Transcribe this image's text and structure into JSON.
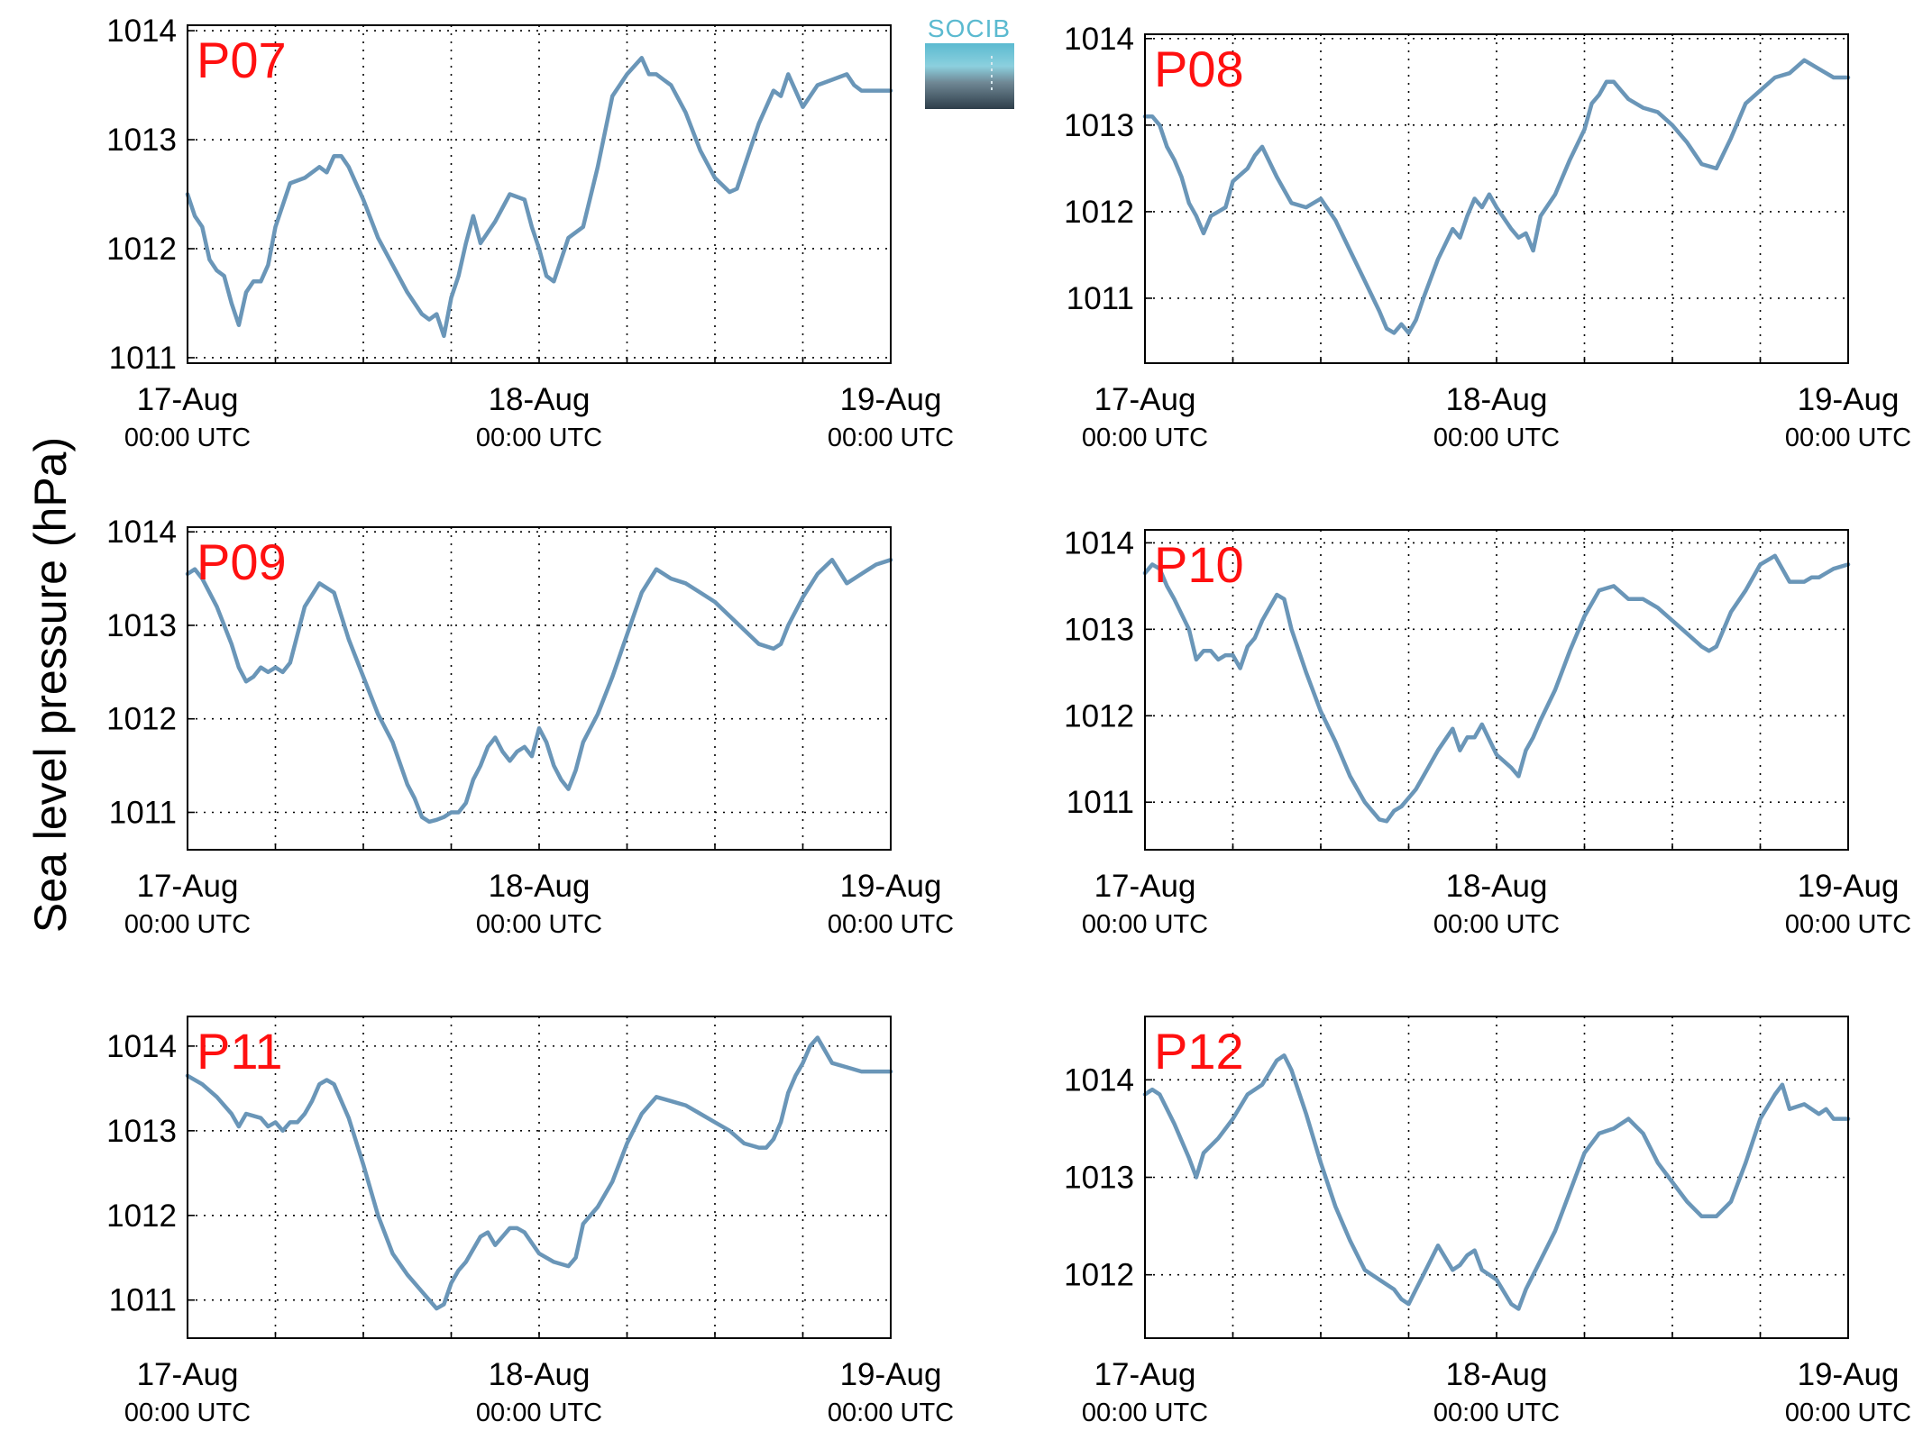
{
  "ylabel": "Sea level pressure (hPa)",
  "logo": {
    "text": "SOCIB"
  },
  "colors": {
    "line": "#6a96b8",
    "panel_label": "#ff1010",
    "logo_accent": "#5bbad0"
  },
  "chart_data": [
    {
      "type": "line",
      "title": "P07",
      "x_ticks": [
        {
          "date": "17-Aug",
          "time": "00:00 UTC"
        },
        {
          "date": "18-Aug",
          "time": "00:00 UTC"
        },
        {
          "date": "19-Aug",
          "time": "00:00 UTC"
        }
      ],
      "xlim_hours": [
        0,
        48
      ],
      "ylim": [
        1010.95,
        1014.05
      ],
      "yticks": [
        1011,
        1012,
        1013,
        1014
      ],
      "grid": true,
      "series": [
        {
          "x": [
            0,
            0.5,
            1,
            1.5,
            2,
            2.5,
            3,
            3.5,
            4,
            4.5,
            5,
            5.5,
            6,
            7,
            8,
            9,
            9.5,
            10,
            10.5,
            11,
            12,
            13,
            14,
            15,
            16,
            16.5,
            17,
            17.5,
            18,
            18.5,
            19,
            19.5,
            20,
            21,
            22,
            23,
            23.5,
            24,
            24.5,
            25,
            26,
            27,
            28,
            29,
            30,
            31,
            31.5,
            32,
            32.5,
            33,
            34,
            35,
            36,
            37,
            37.5,
            38,
            39,
            40,
            40.5,
            41,
            42,
            43,
            44,
            45,
            45.5,
            46,
            46.5,
            47,
            47.5,
            48
          ],
          "y": [
            1012.5,
            1012.3,
            1012.2,
            1011.9,
            1011.8,
            1011.75,
            1011.5,
            1011.3,
            1011.6,
            1011.7,
            1011.7,
            1011.85,
            1012.2,
            1012.6,
            1012.65,
            1012.75,
            1012.7,
            1012.85,
            1012.85,
            1012.75,
            1012.45,
            1012.1,
            1011.85,
            1011.6,
            1011.4,
            1011.35,
            1011.4,
            1011.2,
            1011.55,
            1011.75,
            1012.05,
            1012.3,
            1012.05,
            1012.25,
            1012.5,
            1012.45,
            1012.2,
            1012.0,
            1011.75,
            1011.7,
            1012.1,
            1012.2,
            1012.75,
            1013.4,
            1013.6,
            1013.75,
            1013.6,
            1013.6,
            1013.55,
            1013.5,
            1013.25,
            1012.9,
            1012.65,
            1012.52,
            1012.55,
            1012.75,
            1013.15,
            1013.45,
            1013.4,
            1013.6,
            1013.3,
            1013.5,
            1013.55,
            1013.6,
            1013.5,
            1013.45,
            1013.45,
            1013.45,
            1013.45,
            1013.45
          ]
        }
      ]
    },
    {
      "type": "line",
      "title": "P08",
      "x_ticks": [
        {
          "date": "17-Aug",
          "time": "00:00 UTC"
        },
        {
          "date": "18-Aug",
          "time": "00:00 UTC"
        },
        {
          "date": "19-Aug",
          "time": "00:00 UTC"
        }
      ],
      "xlim_hours": [
        0,
        48
      ],
      "ylim": [
        1010.25,
        1014.05
      ],
      "yticks": [
        1011,
        1012,
        1013,
        1014
      ],
      "grid": true,
      "series": [
        {
          "x": [
            0,
            0.5,
            1,
            1.5,
            2,
            2.5,
            3,
            3.5,
            4,
            4.5,
            5,
            5.5,
            6,
            7,
            7.5,
            8,
            9,
            10,
            11,
            12,
            13,
            14,
            15,
            16,
            16.5,
            17,
            17.5,
            18,
            18.5,
            19,
            20,
            21,
            21.5,
            22,
            22.5,
            23,
            23.5,
            24,
            25,
            25.5,
            26,
            26.5,
            27,
            28,
            29,
            30,
            30.5,
            31,
            31.5,
            32,
            32.5,
            33,
            34,
            35,
            36,
            37,
            38,
            39,
            40,
            41,
            42,
            43,
            44,
            45,
            46,
            46.5,
            47,
            48
          ],
          "y": [
            1013.1,
            1013.1,
            1013.0,
            1012.75,
            1012.6,
            1012.4,
            1012.1,
            1011.95,
            1011.75,
            1011.95,
            1012.0,
            1012.05,
            1012.35,
            1012.5,
            1012.65,
            1012.75,
            1012.4,
            1012.1,
            1012.05,
            1012.15,
            1011.9,
            1011.55,
            1011.2,
            1010.85,
            1010.65,
            1010.6,
            1010.7,
            1010.6,
            1010.75,
            1011.0,
            1011.45,
            1011.8,
            1011.7,
            1011.95,
            1012.15,
            1012.05,
            1012.2,
            1012.05,
            1011.8,
            1011.7,
            1011.75,
            1011.55,
            1011.95,
            1012.2,
            1012.6,
            1012.95,
            1013.25,
            1013.35,
            1013.5,
            1013.5,
            1013.4,
            1013.3,
            1013.2,
            1013.15,
            1013.0,
            1012.8,
            1012.55,
            1012.5,
            1012.85,
            1013.25,
            1013.4,
            1013.55,
            1013.6,
            1013.75,
            1013.65,
            1013.6,
            1013.55,
            1013.55
          ]
        }
      ]
    },
    {
      "type": "line",
      "title": "P09",
      "x_ticks": [
        {
          "date": "17-Aug",
          "time": "00:00 UTC"
        },
        {
          "date": "18-Aug",
          "time": "00:00 UTC"
        },
        {
          "date": "19-Aug",
          "time": "00:00 UTC"
        }
      ],
      "xlim_hours": [
        0,
        48
      ],
      "ylim": [
        1010.6,
        1014.05
      ],
      "yticks": [
        1011,
        1012,
        1013,
        1014
      ],
      "grid": true,
      "series": [
        {
          "x": [
            0,
            0.5,
            1,
            2,
            3,
            3.5,
            4,
            4.5,
            5,
            5.5,
            6,
            6.5,
            7,
            7.5,
            8,
            9,
            10,
            11,
            12,
            13,
            14,
            15,
            15.5,
            16,
            16.5,
            17,
            17.5,
            18,
            18.5,
            19,
            19.5,
            20,
            20.5,
            21,
            21.5,
            22,
            22.5,
            23,
            23.5,
            24,
            24.5,
            25,
            25.5,
            26,
            26.5,
            27,
            28,
            29,
            30,
            31,
            32,
            33,
            34,
            35,
            36,
            37,
            38,
            39,
            40,
            40.5,
            41,
            42,
            43,
            44,
            45,
            45.5,
            46,
            46.5,
            47,
            48
          ],
          "y": [
            1013.55,
            1013.6,
            1013.5,
            1013.2,
            1012.8,
            1012.55,
            1012.4,
            1012.45,
            1012.55,
            1012.5,
            1012.55,
            1012.5,
            1012.6,
            1012.9,
            1013.2,
            1013.45,
            1013.35,
            1012.85,
            1012.45,
            1012.05,
            1011.75,
            1011.3,
            1011.15,
            1010.95,
            1010.9,
            1010.92,
            1010.95,
            1011.0,
            1011.0,
            1011.1,
            1011.35,
            1011.5,
            1011.7,
            1011.8,
            1011.65,
            1011.55,
            1011.65,
            1011.7,
            1011.6,
            1011.9,
            1011.75,
            1011.5,
            1011.35,
            1011.25,
            1011.45,
            1011.75,
            1012.05,
            1012.45,
            1012.9,
            1013.35,
            1013.6,
            1013.5,
            1013.45,
            1013.35,
            1013.25,
            1013.1,
            1012.95,
            1012.8,
            1012.75,
            1012.8,
            1013.0,
            1013.3,
            1013.55,
            1013.7,
            1013.45,
            1013.5,
            1013.55,
            1013.6,
            1013.65,
            1013.7
          ]
        }
      ]
    },
    {
      "type": "line",
      "title": "P10",
      "x_ticks": [
        {
          "date": "17-Aug",
          "time": "00:00 UTC"
        },
        {
          "date": "18-Aug",
          "time": "00:00 UTC"
        },
        {
          "date": "19-Aug",
          "time": "00:00 UTC"
        }
      ],
      "xlim_hours": [
        0,
        48
      ],
      "ylim": [
        1010.45,
        1014.15
      ],
      "yticks": [
        1011,
        1012,
        1013,
        1014
      ],
      "grid": true,
      "series": [
        {
          "x": [
            0,
            0.5,
            1,
            1.5,
            2,
            3,
            3.5,
            4,
            4.5,
            5,
            5.5,
            6,
            6.5,
            7,
            7.5,
            8,
            9,
            9.5,
            10,
            11,
            12,
            13,
            14,
            15,
            16,
            16.5,
            17,
            17.5,
            18,
            18.5,
            19,
            20,
            21,
            21.5,
            22,
            22.5,
            23,
            24,
            25,
            25.5,
            26,
            26.5,
            27,
            28,
            29,
            30,
            31,
            32,
            33,
            34,
            35,
            36,
            37,
            38,
            38.5,
            39,
            40,
            41,
            42,
            43,
            44,
            45,
            45.5,
            46,
            46.5,
            47,
            48
          ],
          "y": [
            1013.65,
            1013.75,
            1013.7,
            1013.5,
            1013.35,
            1013.0,
            1012.65,
            1012.75,
            1012.75,
            1012.65,
            1012.7,
            1012.7,
            1012.55,
            1012.8,
            1012.9,
            1013.1,
            1013.4,
            1013.35,
            1013.0,
            1012.5,
            1012.05,
            1011.7,
            1011.3,
            1011.0,
            1010.8,
            1010.78,
            1010.9,
            1010.95,
            1011.05,
            1011.15,
            1011.3,
            1011.6,
            1011.85,
            1011.6,
            1011.75,
            1011.75,
            1011.9,
            1011.55,
            1011.4,
            1011.3,
            1011.6,
            1011.75,
            1011.95,
            1012.3,
            1012.75,
            1013.15,
            1013.45,
            1013.5,
            1013.35,
            1013.35,
            1013.25,
            1013.1,
            1012.95,
            1012.8,
            1012.75,
            1012.8,
            1013.2,
            1013.45,
            1013.75,
            1013.85,
            1013.55,
            1013.55,
            1013.6,
            1013.6,
            1013.65,
            1013.7,
            1013.75
          ]
        }
      ]
    },
    {
      "type": "line",
      "title": "P11",
      "x_ticks": [
        {
          "date": "17-Aug",
          "time": "00:00 UTC"
        },
        {
          "date": "18-Aug",
          "time": "00:00 UTC"
        },
        {
          "date": "19-Aug",
          "time": "00:00 UTC"
        }
      ],
      "xlim_hours": [
        0,
        48
      ],
      "ylim": [
        1010.55,
        1014.35
      ],
      "yticks": [
        1011,
        1012,
        1013,
        1014
      ],
      "grid": true,
      "series": [
        {
          "x": [
            0,
            1,
            2,
            3,
            3.5,
            4,
            5,
            5.5,
            6,
            6.5,
            7,
            7.5,
            8,
            8.5,
            9,
            9.5,
            10,
            11,
            12,
            13,
            14,
            15,
            16,
            17,
            17.5,
            18,
            18.5,
            19,
            20,
            20.5,
            21,
            21.5,
            22,
            22.5,
            23,
            24,
            25,
            26,
            26.5,
            27,
            28,
            29,
            30,
            31,
            32,
            33,
            34,
            35,
            36,
            37,
            38,
            39,
            39.5,
            40,
            40.5,
            41,
            41.5,
            42,
            42.5,
            43,
            44,
            45,
            46,
            47,
            48
          ],
          "y": [
            1013.65,
            1013.55,
            1013.4,
            1013.2,
            1013.05,
            1013.2,
            1013.15,
            1013.05,
            1013.1,
            1013.0,
            1013.1,
            1013.1,
            1013.2,
            1013.35,
            1013.55,
            1013.6,
            1013.55,
            1013.15,
            1012.6,
            1012.0,
            1011.55,
            1011.3,
            1011.1,
            1010.9,
            1010.95,
            1011.2,
            1011.35,
            1011.45,
            1011.75,
            1011.8,
            1011.65,
            1011.75,
            1011.85,
            1011.85,
            1011.8,
            1011.55,
            1011.45,
            1011.4,
            1011.5,
            1011.9,
            1012.1,
            1012.4,
            1012.85,
            1013.2,
            1013.4,
            1013.35,
            1013.3,
            1013.2,
            1013.1,
            1013.0,
            1012.85,
            1012.8,
            1012.8,
            1012.9,
            1013.1,
            1013.45,
            1013.65,
            1013.8,
            1014.0,
            1014.1,
            1013.8,
            1013.75,
            1013.7,
            1013.7,
            1013.7
          ]
        }
      ]
    },
    {
      "type": "line",
      "title": "P12",
      "x_ticks": [
        {
          "date": "17-Aug",
          "time": "00:00 UTC"
        },
        {
          "date": "18-Aug",
          "time": "00:00 UTC"
        },
        {
          "date": "19-Aug",
          "time": "00:00 UTC"
        }
      ],
      "xlim_hours": [
        0,
        48
      ],
      "ylim": [
        1011.35,
        1014.65
      ],
      "yticks": [
        1012,
        1013,
        1014
      ],
      "grid": true,
      "series": [
        {
          "x": [
            0,
            0.5,
            1,
            2,
            3,
            3.5,
            4,
            5,
            6,
            7,
            8,
            9,
            9.5,
            10,
            11,
            12,
            13,
            14,
            15,
            16,
            17,
            17.5,
            18,
            18.5,
            19,
            20,
            21,
            21.5,
            22,
            22.5,
            23,
            24,
            25,
            25.5,
            26,
            27,
            28,
            29,
            30,
            31,
            32,
            33,
            34,
            35,
            36,
            37,
            38,
            39,
            40,
            40.5,
            41,
            42,
            43,
            43.5,
            44,
            45,
            46,
            46.5,
            47,
            48
          ],
          "y": [
            1013.85,
            1013.9,
            1013.85,
            1013.55,
            1013.2,
            1013.0,
            1013.25,
            1013.4,
            1013.6,
            1013.85,
            1013.95,
            1014.2,
            1014.25,
            1014.1,
            1013.65,
            1013.15,
            1012.7,
            1012.35,
            1012.05,
            1011.95,
            1011.85,
            1011.75,
            1011.7,
            1011.85,
            1012.0,
            1012.3,
            1012.05,
            1012.1,
            1012.2,
            1012.25,
            1012.05,
            1011.95,
            1011.7,
            1011.65,
            1011.85,
            1012.15,
            1012.45,
            1012.85,
            1013.25,
            1013.45,
            1013.5,
            1013.6,
            1013.45,
            1013.15,
            1012.95,
            1012.75,
            1012.6,
            1012.6,
            1012.75,
            1012.95,
            1013.15,
            1013.6,
            1013.85,
            1013.95,
            1013.7,
            1013.75,
            1013.65,
            1013.7,
            1013.6,
            1013.6
          ]
        }
      ]
    }
  ]
}
